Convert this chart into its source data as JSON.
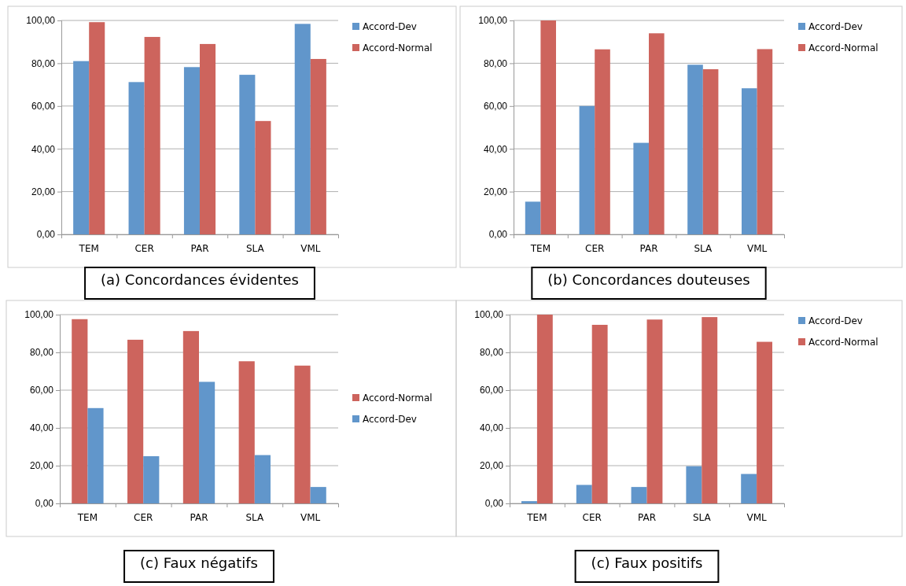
{
  "chart_data": [
    {
      "type": "bar",
      "title": "(a) Concordances évidentes",
      "categories": [
        "TEM",
        "CER",
        "PAR",
        "SLA",
        "VML"
      ],
      "series": [
        {
          "name": "Accord-Dev",
          "color": "#6196cb",
          "values": [
            81,
            71.2,
            78.2,
            74.6,
            98.4
          ]
        },
        {
          "name": "Accord-Normal",
          "color": "#cd645d",
          "values": [
            99.2,
            92.3,
            89,
            53,
            82
          ]
        }
      ],
      "ylim": [
        0,
        100
      ],
      "yticks": [
        {
          "value": 0,
          "label": "0,00"
        },
        {
          "value": 20,
          "label": "20,00"
        },
        {
          "value": 40,
          "label": "40,00"
        },
        {
          "value": 60,
          "label": "60,00"
        },
        {
          "value": 80,
          "label": "80,00"
        },
        {
          "value": 100,
          "label": "100,00"
        }
      ],
      "grid": "y",
      "legend": "top right"
    },
    {
      "type": "bar",
      "title": "(b) Concordances douteuses",
      "categories": [
        "TEM",
        "CER",
        "PAR",
        "SLA",
        "VML"
      ],
      "series": [
        {
          "name": "Accord-Dev",
          "color": "#6196cb",
          "values": [
            15.3,
            60,
            42.8,
            79.3,
            68.3
          ]
        },
        {
          "name": "Accord-Normal",
          "color": "#cd645d",
          "values": [
            100,
            86.5,
            94,
            77.2,
            86.6
          ]
        }
      ],
      "ylim": [
        0,
        100
      ],
      "yticks": [
        {
          "value": 0,
          "label": "0,00"
        },
        {
          "value": 20,
          "label": "20,00"
        },
        {
          "value": 40,
          "label": "40,00"
        },
        {
          "value": 60,
          "label": "60,00"
        },
        {
          "value": 80,
          "label": "80,00"
        },
        {
          "value": 100,
          "label": "100,00"
        }
      ],
      "grid": "y",
      "legend": "top right"
    },
    {
      "type": "bar",
      "title": "(c) Faux négatifs",
      "categories": [
        "TEM",
        "CER",
        "PAR",
        "SLA",
        "VML"
      ],
      "series": [
        {
          "name": "Accord-Normal",
          "color": "#cd645d",
          "values": [
            97.6,
            86.7,
            91.3,
            75.3,
            73
          ]
        },
        {
          "name": "Accord-Dev",
          "color": "#6196cb",
          "values": [
            50.5,
            25,
            64.4,
            25.6,
            8.7
          ]
        }
      ],
      "ylim": [
        0,
        100
      ],
      "yticks": [
        {
          "value": 0,
          "label": "0,00"
        },
        {
          "value": 20,
          "label": "20,00"
        },
        {
          "value": 40,
          "label": "40,00"
        },
        {
          "value": 60,
          "label": "60,00"
        },
        {
          "value": 80,
          "label": "80,00"
        },
        {
          "value": 100,
          "label": "100,00"
        }
      ],
      "grid": "y",
      "legend": "right"
    },
    {
      "type": "bar",
      "title": "(c) Faux positifs",
      "categories": [
        "TEM",
        "CER",
        "PAR",
        "SLA",
        "VML"
      ],
      "series": [
        {
          "name": "Accord-Dev",
          "color": "#6196cb",
          "values": [
            1.2,
            9.8,
            8.7,
            19.7,
            15.6
          ]
        },
        {
          "name": "Accord-Normal",
          "color": "#cd645d",
          "values": [
            100,
            94.6,
            97.4,
            98.7,
            85.6
          ]
        }
      ],
      "ylim": [
        0,
        100
      ],
      "yticks": [
        {
          "value": 0,
          "label": "0,00"
        },
        {
          "value": 20,
          "label": "20,00"
        },
        {
          "value": 40,
          "label": "40,00"
        },
        {
          "value": 60,
          "label": "60,00"
        },
        {
          "value": 80,
          "label": "80,00"
        },
        {
          "value": 100,
          "label": "100,00"
        }
      ],
      "grid": "y",
      "legend": "top right"
    }
  ]
}
